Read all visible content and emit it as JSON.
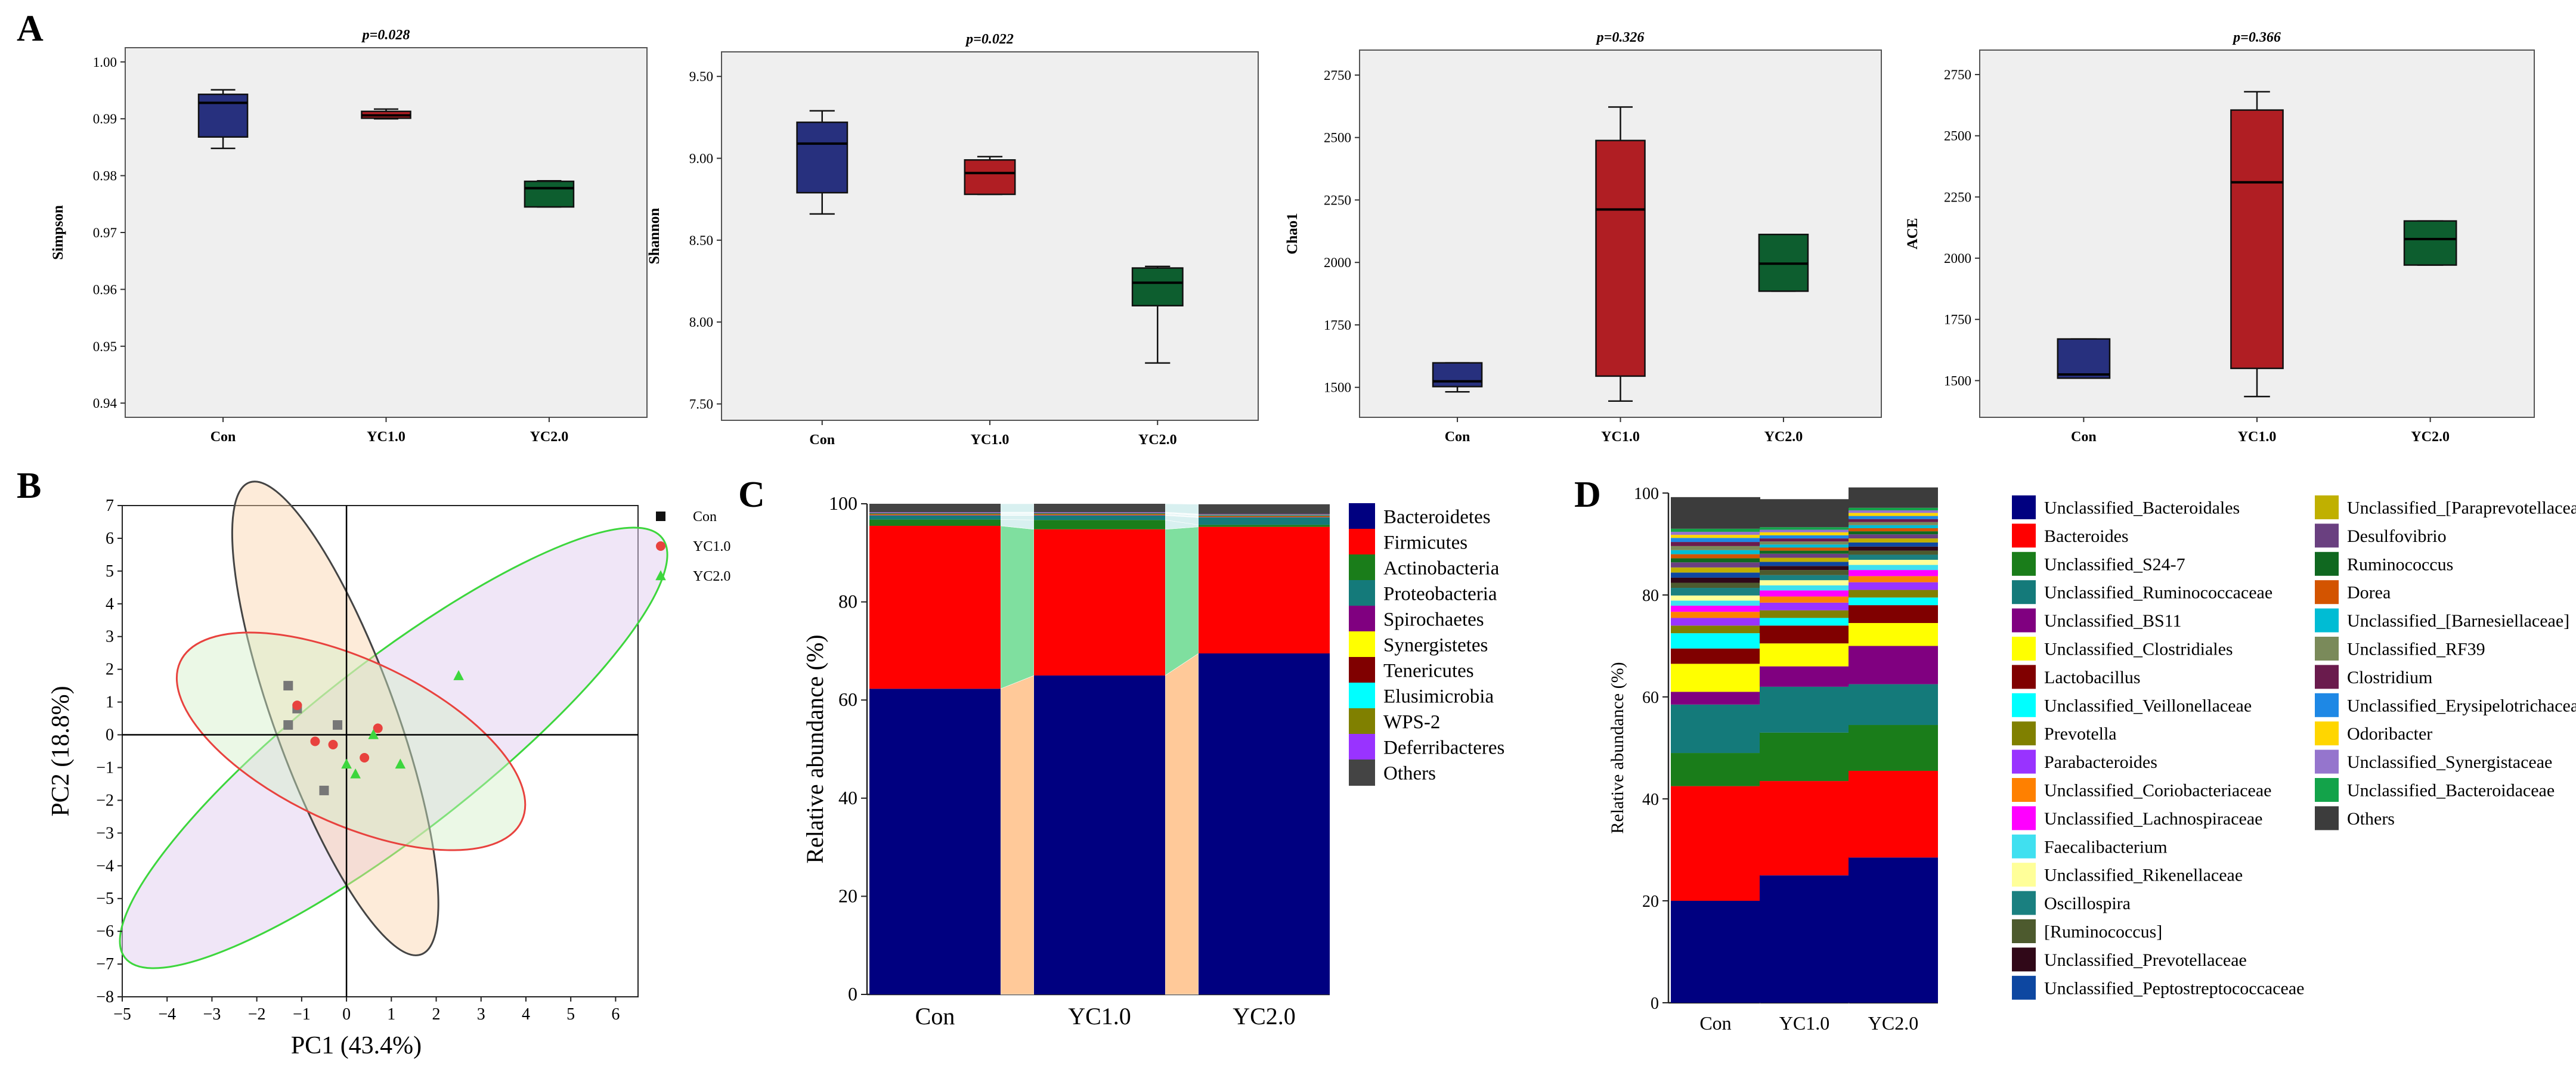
{
  "panel_letters": [
    "A",
    "B",
    "C",
    "D"
  ],
  "colors": {
    "Con": "#27307e",
    "YC1.0": "#b01e23",
    "YC2.0": "#0d5e2f",
    "box_bg": "#efefef",
    "pcoa_con": "#444444",
    "pcoa_yc1": "#e8423e",
    "pcoa_yc2": "#3dd63d"
  },
  "chart_data": [
    {
      "panel": "A",
      "type": "box",
      "title": "p=0.028",
      "ylabel": "Simpson",
      "xlabel": "",
      "categories": [
        "Con",
        "YC1.0",
        "YC2.0"
      ],
      "ylim": [
        0.9375,
        1.0025
      ],
      "yticks": [
        0.94,
        0.95,
        0.96,
        0.97,
        0.98,
        0.99,
        1.0
      ],
      "ytick_labels": [
        "0.94",
        "0.95",
        "0.96",
        "0.97",
        "0.98",
        "0.99",
        "1.00"
      ],
      "boxes": [
        {
          "min": 0.9848,
          "q1": 0.9868,
          "median": 0.9928,
          "q3": 0.9943,
          "max": 0.9951
        },
        {
          "min": 0.99,
          "q1": 0.9901,
          "median": 0.9906,
          "q3": 0.9913,
          "max": 0.9917
        },
        {
          "min": 0.9745,
          "q1": 0.9745,
          "median": 0.9778,
          "q3": 0.979,
          "max": 0.9791
        }
      ]
    },
    {
      "panel": "A",
      "type": "box",
      "title": "p=0.022",
      "ylabel": "Shannon",
      "xlabel": "",
      "categories": [
        "Con",
        "YC1.0",
        "YC2.0"
      ],
      "ylim": [
        7.4,
        9.65
      ],
      "yticks": [
        7.5,
        8.0,
        8.5,
        9.0,
        9.5
      ],
      "ytick_labels": [
        "7.50",
        "8.00",
        "8.50",
        "9.00",
        "9.50"
      ],
      "boxes": [
        {
          "min": 8.66,
          "q1": 8.79,
          "median": 9.09,
          "q3": 9.22,
          "max": 9.29
        },
        {
          "min": 8.78,
          "q1": 8.78,
          "median": 8.91,
          "q3": 8.99,
          "max": 9.01
        },
        {
          "min": 7.75,
          "q1": 8.1,
          "median": 8.24,
          "q3": 8.33,
          "max": 8.34
        }
      ]
    },
    {
      "panel": "A",
      "type": "box",
      "title": "p=0.326",
      "ylabel": "Chao1",
      "xlabel": "",
      "categories": [
        "Con",
        "YC1.0",
        "YC2.0"
      ],
      "ylim": [
        1380,
        2850
      ],
      "yticks": [
        1500,
        1750,
        2000,
        2250,
        2500,
        2750
      ],
      "ytick_labels": [
        "1500",
        "1750",
        "2000",
        "2250",
        "2500",
        "2750"
      ],
      "boxes": [
        {
          "min": 1482,
          "q1": 1503,
          "median": 1524,
          "q3": 1598,
          "max": 1598
        },
        {
          "min": 1445,
          "q1": 1545,
          "median": 2212,
          "q3": 2488,
          "max": 2622
        },
        {
          "min": 1885,
          "q1": 1885,
          "median": 1995,
          "q3": 2112,
          "max": 2112
        }
      ]
    },
    {
      "panel": "A",
      "type": "box",
      "title": "p=0.366",
      "ylabel": "ACE",
      "xlabel": "",
      "categories": [
        "Con",
        "YC1.0",
        "YC2.0"
      ],
      "ylim": [
        1350,
        2850
      ],
      "yticks": [
        1500,
        1750,
        2000,
        2250,
        2500,
        2750
      ],
      "ytick_labels": [
        "1500",
        "1750",
        "2000",
        "2250",
        "2500",
        "2750"
      ],
      "boxes": [
        {
          "min": 1510,
          "q1": 1510,
          "median": 1525,
          "q3": 1670,
          "max": 1670
        },
        {
          "min": 1435,
          "q1": 1550,
          "median": 2310,
          "q3": 2605,
          "max": 2680
        },
        {
          "min": 1972,
          "q1": 1972,
          "median": 2078,
          "q3": 2152,
          "max": 2152
        }
      ]
    },
    {
      "panel": "B",
      "type": "scatter",
      "xlabel": "PC1 (43.4%)",
      "ylabel": "PC2 (18.8%)",
      "xlim": [
        -5,
        6.5
      ],
      "ylim": [
        -8,
        7
      ],
      "xticks": [
        -5,
        -4,
        -3,
        -2,
        -1,
        0,
        1,
        2,
        3,
        4,
        5,
        6
      ],
      "yticks": [
        -8,
        -7,
        -6,
        -5,
        -4,
        -3,
        -2,
        -1,
        0,
        1,
        2,
        3,
        4,
        5,
        6,
        7
      ],
      "series": [
        {
          "name": "Con",
          "marker": "square",
          "points": [
            [
              -1.3,
              1.5
            ],
            [
              -0.2,
              0.3
            ],
            [
              -1.3,
              0.3
            ],
            [
              -1.1,
              0.8
            ],
            [
              -0.5,
              -1.7
            ]
          ]
        },
        {
          "name": "YC1.0",
          "marker": "circle",
          "points": [
            [
              -1.1,
              0.9
            ],
            [
              0.7,
              0.2
            ],
            [
              -0.7,
              -0.2
            ],
            [
              0.4,
              -0.7
            ],
            [
              -0.3,
              -0.3
            ]
          ]
        },
        {
          "name": "YC2.0",
          "marker": "triangle",
          "points": [
            [
              2.5,
              1.8
            ],
            [
              1.2,
              -0.9
            ],
            [
              0.0,
              -0.9
            ],
            [
              0.6,
              0.0
            ],
            [
              0.2,
              -1.2
            ]
          ]
        }
      ],
      "ellipses": [
        {
          "series": "Con",
          "cx": -0.25,
          "cy": 0.5,
          "rx": 5.6,
          "ry": 1.85,
          "angle_deg": -70
        },
        {
          "series": "YC1.0",
          "cx": 0.1,
          "cy": -0.2,
          "rx": 4.2,
          "ry": 2.5,
          "angle_deg": -25
        },
        {
          "series": "YC2.0",
          "cx": 1.05,
          "cy": -0.4,
          "rx": 7.6,
          "ry": 2.6,
          "angle_deg": 38
        }
      ],
      "legend": [
        "Con",
        "YC1.0",
        "YC2.0"
      ],
      "legend_position": "top-right"
    },
    {
      "panel": "C",
      "type": "stacked-bar",
      "ylabel": "Relative abundance (%)",
      "categories": [
        "Con",
        "YC1.0",
        "YC2.0"
      ],
      "ylim": [
        0,
        100
      ],
      "yticks": [
        0,
        20,
        40,
        60,
        80,
        100
      ],
      "series": [
        {
          "name": "Bacteroidetes",
          "color": "#000080",
          "values": [
            62.3,
            65.0,
            69.5
          ]
        },
        {
          "name": "Firmicutes",
          "color": "#ff0000",
          "values": [
            33.2,
            29.8,
            25.8
          ]
        },
        {
          "name": "Actinobacteria",
          "color": "#1a7d1a",
          "values": [
            1.3,
            1.9,
            0.4
          ]
        },
        {
          "name": "Proteobacteria",
          "color": "#147a7a",
          "values": [
            0.8,
            0.9,
            1.5
          ]
        },
        {
          "name": "Spirochaetes",
          "color": "#800080",
          "values": [
            0.1,
            0.1,
            0.1
          ]
        },
        {
          "name": "Synergistetes",
          "color": "#ffff00",
          "values": [
            0.1,
            0.1,
            0.1
          ]
        },
        {
          "name": "Tenericutes",
          "color": "#800000",
          "values": [
            0.2,
            0.2,
            0.2
          ]
        },
        {
          "name": "Elusimicrobia",
          "color": "#00ffff",
          "values": [
            0.1,
            0.1,
            0.1
          ]
        },
        {
          "name": "WPS-2",
          "color": "#808000",
          "values": [
            0.1,
            0.1,
            0.1
          ]
        },
        {
          "name": "Deferribacteres",
          "color": "#9933ff",
          "values": [
            0.1,
            0.1,
            0.1
          ]
        },
        {
          "name": "Others",
          "color": "#444444",
          "values": [
            1.7,
            1.7,
            2.0
          ]
        }
      ]
    },
    {
      "panel": "D",
      "type": "stacked-bar",
      "ylabel": "Relative abundance (%)",
      "categories": [
        "Con",
        "YC1.0",
        "YC2.0"
      ],
      "ylim": [
        0,
        100
      ],
      "yticks": [
        0,
        20,
        40,
        60,
        80,
        100
      ],
      "series": [
        {
          "name": "Unclassified_Bacteroidales",
          "color": "#000080",
          "values": [
            20.0,
            25.0,
            28.5
          ]
        },
        {
          "name": "Bacteroides",
          "color": "#ff0000",
          "values": [
            22.5,
            18.5,
            17.0
          ]
        },
        {
          "name": "Unclassified_S24-7",
          "color": "#1a7d1a",
          "values": [
            6.5,
            9.5,
            9.0
          ]
        },
        {
          "name": "Unclassified_Ruminococcaceae",
          "color": "#147a7a",
          "values": [
            9.5,
            9.0,
            8.0
          ]
        },
        {
          "name": "Unclassified_BS11",
          "color": "#800080",
          "values": [
            2.5,
            4.0,
            7.5
          ]
        },
        {
          "name": "Unclassified_Clostridiales",
          "color": "#ffff00",
          "values": [
            5.5,
            4.5,
            4.5
          ]
        },
        {
          "name": "Lactobacillus",
          "color": "#800000",
          "values": [
            3.0,
            3.5,
            3.5
          ]
        },
        {
          "name": "Unclassified_Veillonellaceae",
          "color": "#00ffff",
          "values": [
            3.0,
            1.5,
            1.5
          ]
        },
        {
          "name": "Prevotella",
          "color": "#808000",
          "values": [
            1.5,
            1.5,
            1.5
          ]
        },
        {
          "name": "Parabacteroides",
          "color": "#9933ff",
          "values": [
            1.5,
            1.5,
            1.5
          ]
        },
        {
          "name": "Unclassified_Coriobacteriaceae",
          "color": "#ff8000",
          "values": [
            1.2,
            1.2,
            1.2
          ]
        },
        {
          "name": "Unclassified_Lachnospiraceae",
          "color": "#ff00ff",
          "values": [
            1.2,
            1.2,
            1.2
          ]
        },
        {
          "name": "Faecalibacterium",
          "color": "#40e0f0",
          "values": [
            1.0,
            1.0,
            1.0
          ]
        },
        {
          "name": "Unclassified_Rikenellaceae",
          "color": "#ffff99",
          "values": [
            1.0,
            1.0,
            1.0
          ]
        },
        {
          "name": "Oscillospira",
          "color": "#1a8080",
          "values": [
            1.5,
            1.0,
            1.0
          ]
        },
        {
          "name": "[Ruminococcus]",
          "color": "#4d5a2e",
          "values": [
            1.0,
            1.0,
            0.8
          ]
        },
        {
          "name": "Unclassified_Prevotellaceae",
          "color": "#300818",
          "values": [
            1.0,
            0.8,
            0.8
          ]
        },
        {
          "name": "Unclassified_Peptostreptococcaceae",
          "color": "#0d47a1",
          "values": [
            1.0,
            0.8,
            0.8
          ]
        },
        {
          "name": "Unclassified_[Paraprevotellaceae]",
          "color": "#c0b000",
          "values": [
            1.0,
            0.8,
            0.8
          ]
        },
        {
          "name": "Desulfovibrio",
          "color": "#6a4080",
          "values": [
            1.0,
            0.8,
            0.8
          ]
        },
        {
          "name": "Ruminococcus",
          "color": "#106820",
          "values": [
            0.8,
            0.6,
            0.6
          ]
        },
        {
          "name": "Dorea",
          "color": "#d35400",
          "values": [
            0.8,
            0.6,
            0.6
          ]
        },
        {
          "name": "Unclassified_[Barnesiellaceae]",
          "color": "#00bcd4",
          "values": [
            0.8,
            0.6,
            0.6
          ]
        },
        {
          "name": "Unclassified_RF39",
          "color": "#7a8a5a",
          "values": [
            0.8,
            0.6,
            0.6
          ]
        },
        {
          "name": "Clostridium",
          "color": "#6a1b4d",
          "values": [
            0.8,
            0.6,
            0.6
          ]
        },
        {
          "name": "Unclassified_Erysipelotrichaceae",
          "color": "#1e88e5",
          "values": [
            0.8,
            0.6,
            0.6
          ]
        },
        {
          "name": "Odoribacter",
          "color": "#ffd600",
          "values": [
            0.6,
            0.6,
            0.6
          ]
        },
        {
          "name": "Unclassified_Synergistaceae",
          "color": "#9575cd",
          "values": [
            0.6,
            0.5,
            0.5
          ]
        },
        {
          "name": "Unclassified_Bacteroidaceae",
          "color": "#13a34a",
          "values": [
            0.6,
            0.5,
            0.5
          ]
        },
        {
          "name": "Others",
          "color": "#3c3c3c",
          "values": [
            6.2,
            5.5,
            4.0
          ]
        }
      ]
    }
  ]
}
